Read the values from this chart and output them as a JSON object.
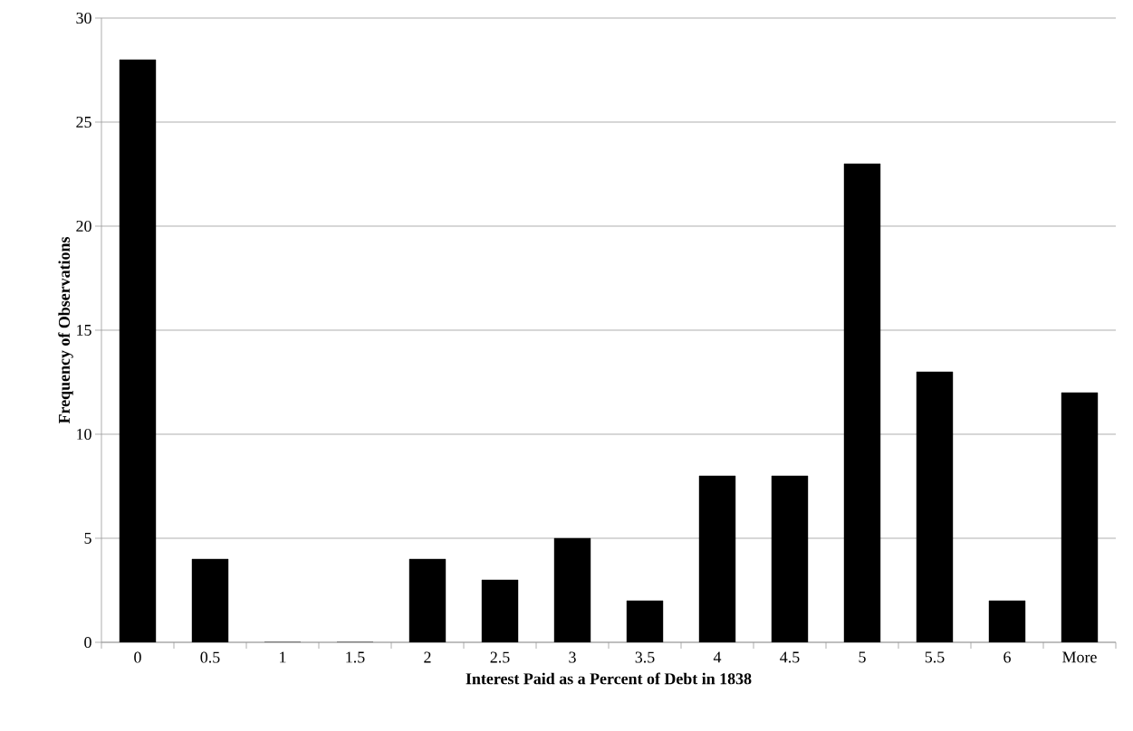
{
  "chart_data": {
    "type": "bar",
    "xlabel": "Interest Paid as a Percent of Debt in 1838",
    "ylabel": "Frequency of Observations",
    "categories": [
      "0",
      "0.5",
      "1",
      "1.5",
      "2",
      "2.5",
      "3",
      "3.5",
      "4",
      "4.5",
      "5",
      "5.5",
      "6",
      "More"
    ],
    "values": [
      28,
      4,
      0,
      0,
      4,
      3,
      5,
      2,
      8,
      8,
      23,
      13,
      2,
      12
    ],
    "color": "#000000",
    "ylim": [
      0,
      30
    ],
    "yticks": [
      0,
      5,
      10,
      15,
      20,
      25,
      30
    ],
    "grid": "y"
  }
}
